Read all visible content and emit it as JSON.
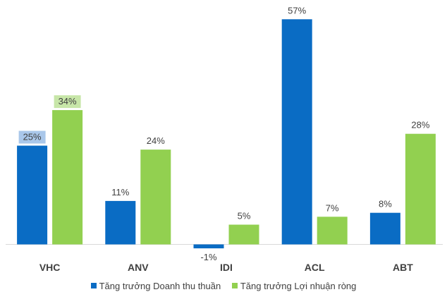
{
  "chart_data": {
    "type": "bar",
    "categories": [
      "VHC",
      "ANV",
      "IDI",
      "ACL",
      "ABT"
    ],
    "series": [
      {
        "name": "Tăng trưởng Doanh thu thuần",
        "values": [
          25,
          11,
          -1,
          57,
          8
        ],
        "color": "#0a6cc4"
      },
      {
        "name": "Tăng trưởng Lợi nhuận ròng",
        "values": [
          34,
          24,
          5,
          7,
          28
        ],
        "color": "#92d050"
      }
    ],
    "data_labels": [
      [
        "25%",
        "11%",
        "-1%",
        "57%",
        "8%"
      ],
      [
        "34%",
        "24%",
        "5%",
        "7%",
        "28%"
      ]
    ],
    "highlighted_labels": {
      "VHC": {
        "series0_bg": "#a9c7ea",
        "series1_bg": "#c7e6a8"
      }
    },
    "title": "",
    "xlabel": "",
    "ylabel": "",
    "ylim": [
      -2,
      57
    ],
    "grid": false,
    "legend_position": "bottom"
  }
}
